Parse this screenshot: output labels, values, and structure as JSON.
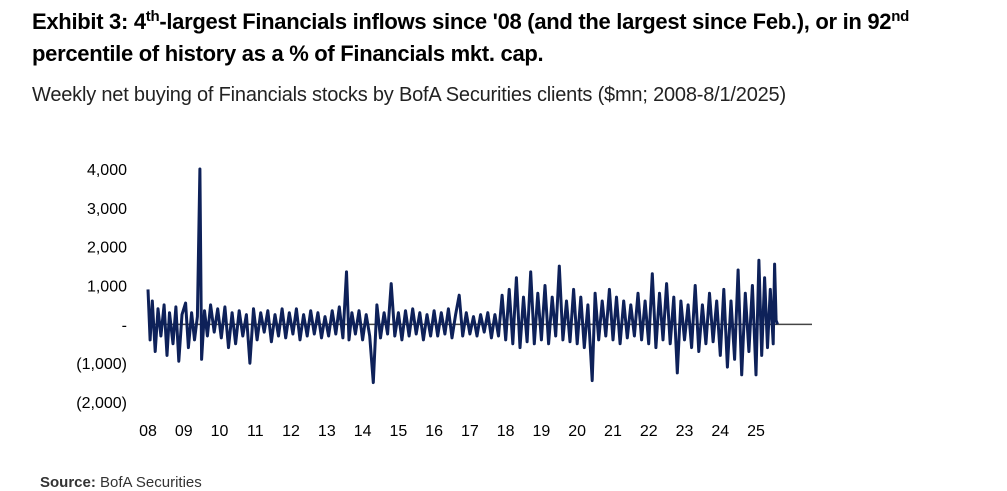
{
  "title": {
    "p1": "Exhibit 3: 4",
    "sup1": "th",
    "p2": "-largest Financials inflows since '08 (and the largest since Feb.), or in 92",
    "sup2": "nd",
    "p3": "percentile of history as a % of Financials mkt. cap."
  },
  "subtitle": "Weekly net buying of Financials stocks by BofA Securities clients ($mn; 2008-8/1/2025)",
  "source": {
    "label": "Source:",
    "text": "BofA Securities"
  },
  "colors": {
    "series": "#0e2159",
    "zero_line": "#444444"
  },
  "chart_data": {
    "type": "line",
    "title": "",
    "xlabel": "",
    "ylabel": "",
    "ylim": [
      -2000,
      4000
    ],
    "xlim": [
      2008.0,
      2025.95
    ],
    "yticks": [
      4000,
      3000,
      2000,
      1000,
      0,
      -1000,
      -2000
    ],
    "ytick_labels": [
      "4,000",
      "3,000",
      "2,000",
      "1,000",
      "-",
      "(1,000)",
      "(2,000)"
    ],
    "xticks": [
      2008,
      2009,
      2010,
      2011,
      2012,
      2013,
      2014,
      2015,
      2016,
      2017,
      2018,
      2019,
      2020,
      2021,
      2022,
      2023,
      2024,
      2025
    ],
    "xtick_labels": [
      "08",
      "09",
      "10",
      "11",
      "12",
      "13",
      "14",
      "15",
      "16",
      "17",
      "18",
      "19",
      "20",
      "21",
      "22",
      "23",
      "24",
      "25"
    ],
    "grid": false,
    "legend": "none",
    "series": [
      {
        "points": [
          [
            2008.0,
            900
          ],
          [
            2008.06,
            -400
          ],
          [
            2008.12,
            600
          ],
          [
            2008.2,
            -700
          ],
          [
            2008.28,
            400
          ],
          [
            2008.36,
            -300
          ],
          [
            2008.45,
            500
          ],
          [
            2008.53,
            -800
          ],
          [
            2008.6,
            300
          ],
          [
            2008.7,
            -500
          ],
          [
            2008.78,
            450
          ],
          [
            2008.86,
            -950
          ],
          [
            2008.95,
            250
          ],
          [
            2009.05,
            550
          ],
          [
            2009.13,
            -600
          ],
          [
            2009.22,
            300
          ],
          [
            2009.3,
            -400
          ],
          [
            2009.38,
            200
          ],
          [
            2009.45,
            4000
          ],
          [
            2009.5,
            -900
          ],
          [
            2009.58,
            350
          ],
          [
            2009.66,
            -300
          ],
          [
            2009.75,
            500
          ],
          [
            2009.85,
            -200
          ],
          [
            2009.95,
            400
          ],
          [
            2010.05,
            -350
          ],
          [
            2010.15,
            450
          ],
          [
            2010.25,
            -600
          ],
          [
            2010.35,
            300
          ],
          [
            2010.45,
            -500
          ],
          [
            2010.55,
            350
          ],
          [
            2010.65,
            -300
          ],
          [
            2010.75,
            250
          ],
          [
            2010.85,
            -1000
          ],
          [
            2010.95,
            400
          ],
          [
            2011.05,
            -400
          ],
          [
            2011.15,
            300
          ],
          [
            2011.25,
            -200
          ],
          [
            2011.35,
            350
          ],
          [
            2011.45,
            -450
          ],
          [
            2011.55,
            250
          ],
          [
            2011.65,
            -300
          ],
          [
            2011.75,
            400
          ],
          [
            2011.85,
            -350
          ],
          [
            2011.95,
            300
          ],
          [
            2012.05,
            -250
          ],
          [
            2012.15,
            400
          ],
          [
            2012.25,
            -400
          ],
          [
            2012.35,
            250
          ],
          [
            2012.45,
            -300
          ],
          [
            2012.55,
            350
          ],
          [
            2012.65,
            -250
          ],
          [
            2012.75,
            300
          ],
          [
            2012.85,
            -350
          ],
          [
            2012.95,
            200
          ],
          [
            2013.05,
            -300
          ],
          [
            2013.15,
            350
          ],
          [
            2013.25,
            -250
          ],
          [
            2013.35,
            450
          ],
          [
            2013.45,
            -350
          ],
          [
            2013.55,
            1350
          ],
          [
            2013.62,
            -400
          ],
          [
            2013.7,
            300
          ],
          [
            2013.8,
            -250
          ],
          [
            2013.9,
            350
          ],
          [
            2014.0,
            -400
          ],
          [
            2014.1,
            250
          ],
          [
            2014.2,
            -300
          ],
          [
            2014.3,
            -1500
          ],
          [
            2014.4,
            500
          ],
          [
            2014.5,
            -350
          ],
          [
            2014.6,
            300
          ],
          [
            2014.7,
            -250
          ],
          [
            2014.8,
            1050
          ],
          [
            2014.9,
            -300
          ],
          [
            2015.0,
            300
          ],
          [
            2015.1,
            -400
          ],
          [
            2015.2,
            350
          ],
          [
            2015.3,
            -300
          ],
          [
            2015.4,
            400
          ],
          [
            2015.5,
            -250
          ],
          [
            2015.6,
            300
          ],
          [
            2015.7,
            -400
          ],
          [
            2015.8,
            250
          ],
          [
            2015.9,
            -300
          ],
          [
            2016.0,
            350
          ],
          [
            2016.1,
            -300
          ],
          [
            2016.2,
            300
          ],
          [
            2016.3,
            -250
          ],
          [
            2016.4,
            400
          ],
          [
            2016.5,
            -350
          ],
          [
            2016.6,
            250
          ],
          [
            2016.7,
            750
          ],
          [
            2016.8,
            -300
          ],
          [
            2016.9,
            300
          ],
          [
            2017.0,
            -250
          ],
          [
            2017.1,
            200
          ],
          [
            2017.2,
            -300
          ],
          [
            2017.3,
            250
          ],
          [
            2017.4,
            -200
          ],
          [
            2017.5,
            300
          ],
          [
            2017.6,
            -350
          ],
          [
            2017.7,
            250
          ],
          [
            2017.8,
            -300
          ],
          [
            2017.9,
            750
          ],
          [
            2018.0,
            -400
          ],
          [
            2018.1,
            900
          ],
          [
            2018.2,
            -500
          ],
          [
            2018.3,
            1200
          ],
          [
            2018.4,
            -600
          ],
          [
            2018.5,
            700
          ],
          [
            2018.6,
            -450
          ],
          [
            2018.7,
            1350
          ],
          [
            2018.8,
            -500
          ],
          [
            2018.9,
            800
          ],
          [
            2019.0,
            -400
          ],
          [
            2019.1,
            1000
          ],
          [
            2019.2,
            -500
          ],
          [
            2019.3,
            700
          ],
          [
            2019.4,
            -300
          ],
          [
            2019.5,
            1500
          ],
          [
            2019.6,
            -400
          ],
          [
            2019.7,
            600
          ],
          [
            2019.8,
            -450
          ],
          [
            2019.9,
            900
          ],
          [
            2020.0,
            -500
          ],
          [
            2020.1,
            700
          ],
          [
            2020.2,
            -600
          ],
          [
            2020.3,
            500
          ],
          [
            2020.42,
            -1450
          ],
          [
            2020.5,
            800
          ],
          [
            2020.6,
            -400
          ],
          [
            2020.7,
            600
          ],
          [
            2020.8,
            -300
          ],
          [
            2020.9,
            900
          ],
          [
            2021.0,
            -400
          ],
          [
            2021.1,
            700
          ],
          [
            2021.2,
            -500
          ],
          [
            2021.3,
            600
          ],
          [
            2021.4,
            -350
          ],
          [
            2021.5,
            500
          ],
          [
            2021.6,
            -300
          ],
          [
            2021.7,
            800
          ],
          [
            2021.8,
            -400
          ],
          [
            2021.9,
            600
          ],
          [
            2022.0,
            -500
          ],
          [
            2022.1,
            1300
          ],
          [
            2022.2,
            -600
          ],
          [
            2022.3,
            800
          ],
          [
            2022.4,
            -400
          ],
          [
            2022.5,
            1050
          ],
          [
            2022.6,
            -500
          ],
          [
            2022.7,
            700
          ],
          [
            2022.8,
            -1250
          ],
          [
            2022.9,
            600
          ],
          [
            2023.0,
            -400
          ],
          [
            2023.1,
            500
          ],
          [
            2023.2,
            -600
          ],
          [
            2023.3,
            1000
          ],
          [
            2023.4,
            -700
          ],
          [
            2023.5,
            500
          ],
          [
            2023.6,
            -500
          ],
          [
            2023.7,
            800
          ],
          [
            2023.8,
            -450
          ],
          [
            2023.9,
            600
          ],
          [
            2024.0,
            -800
          ],
          [
            2024.1,
            900
          ],
          [
            2024.2,
            -1100
          ],
          [
            2024.3,
            600
          ],
          [
            2024.4,
            -900
          ],
          [
            2024.5,
            1400
          ],
          [
            2024.6,
            -1300
          ],
          [
            2024.7,
            800
          ],
          [
            2024.8,
            -700
          ],
          [
            2024.9,
            1000
          ],
          [
            2025.0,
            -1300
          ],
          [
            2025.08,
            1650
          ],
          [
            2025.16,
            -800
          ],
          [
            2025.24,
            1200
          ],
          [
            2025.32,
            -600
          ],
          [
            2025.4,
            900
          ],
          [
            2025.48,
            -500
          ],
          [
            2025.52,
            1550
          ],
          [
            2025.56,
            100
          ],
          [
            2025.6,
            0
          ]
        ]
      }
    ]
  }
}
